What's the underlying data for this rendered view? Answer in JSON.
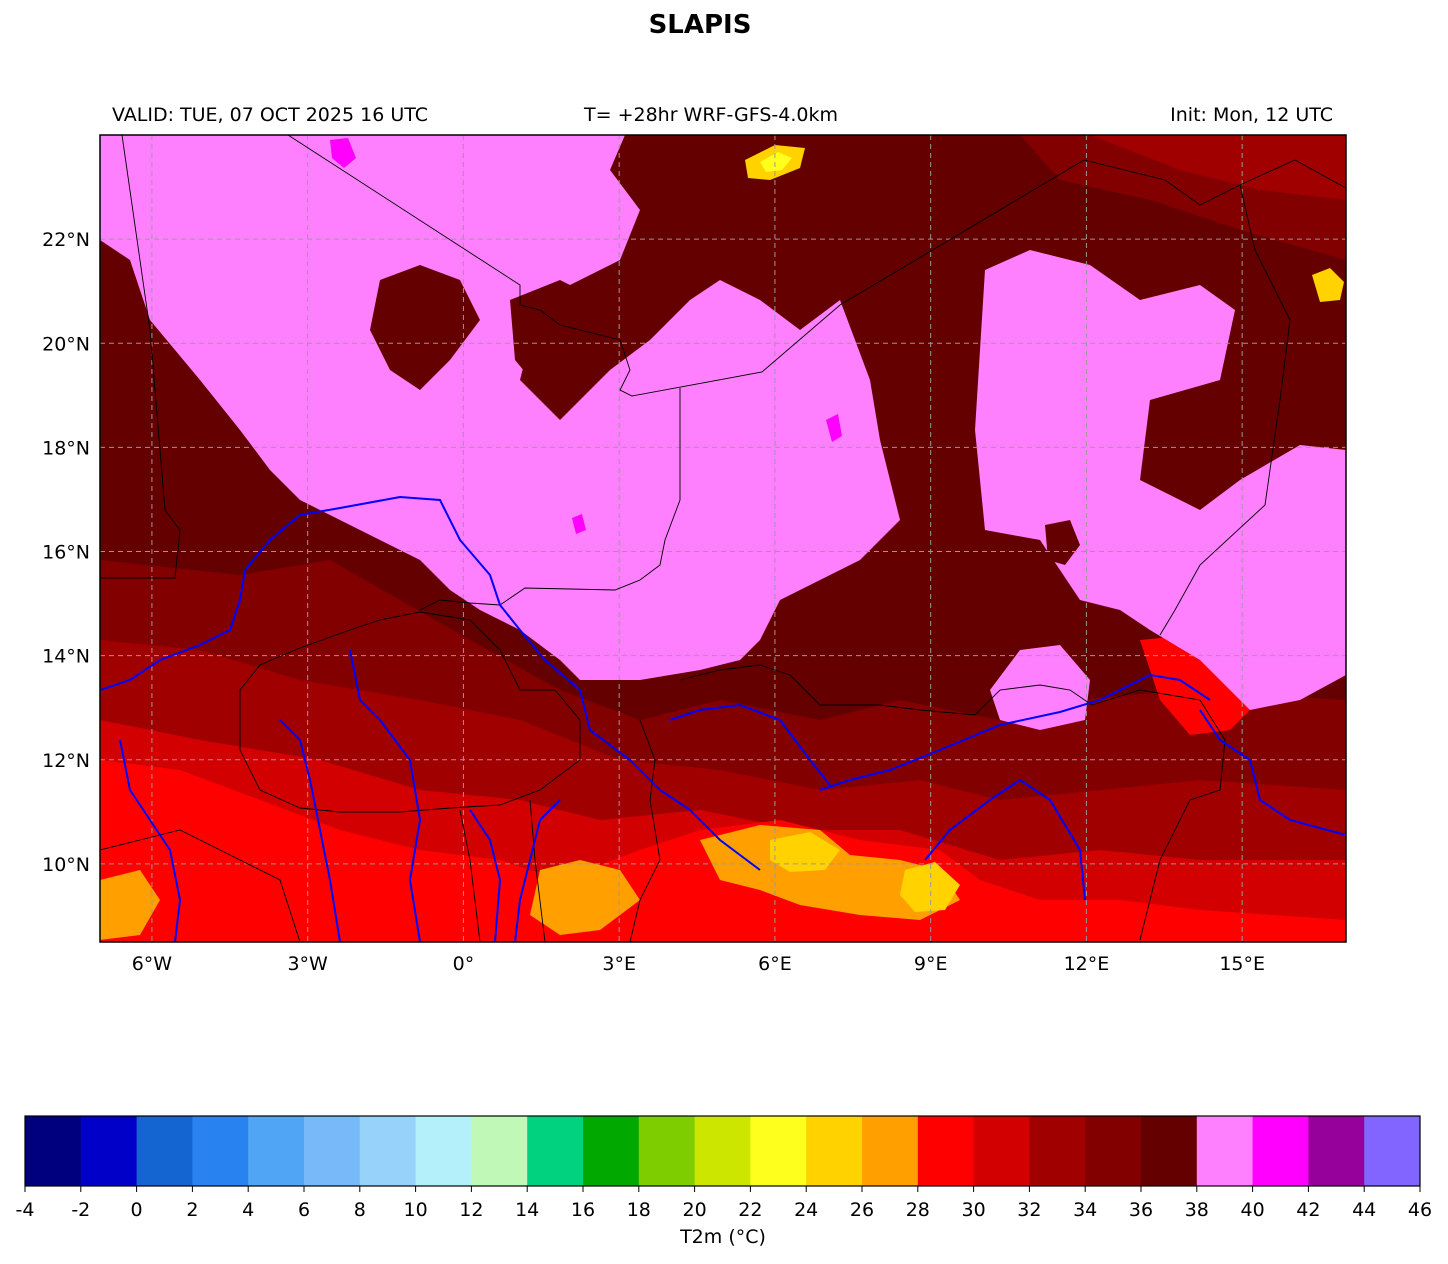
{
  "header": {
    "title": "SLAPIS",
    "valid": "VALID: TUE, 07 OCT 2025 16 UTC",
    "forecast": "T= +28hr WRF-GFS-4.0km",
    "init": "Init: Mon, 12 UTC"
  },
  "map": {
    "lon_range": [
      -7,
      17
    ],
    "lat_range": [
      8.5,
      24
    ],
    "x_ticks": [
      {
        "lon": -6,
        "label": "6°W"
      },
      {
        "lon": -3,
        "label": "3°W"
      },
      {
        "lon": 0,
        "label": "0°"
      },
      {
        "lon": 3,
        "label": "3°E"
      },
      {
        "lon": 6,
        "label": "6°E"
      },
      {
        "lon": 9,
        "label": "9°E"
      },
      {
        "lon": 12,
        "label": "12°E"
      },
      {
        "lon": 15,
        "label": "15°E"
      }
    ],
    "y_ticks": [
      {
        "lat": 10,
        "label": "10°N"
      },
      {
        "lat": 12,
        "label": "12°N"
      },
      {
        "lat": 14,
        "label": "14°N"
      },
      {
        "lat": 16,
        "label": "16°N"
      },
      {
        "lat": 18,
        "label": "18°N"
      },
      {
        "lat": 20,
        "label": "20°N"
      },
      {
        "lat": 22,
        "label": "22°N"
      }
    ],
    "grid": true,
    "colors": {
      "river": "#0000ff",
      "border": "#000000",
      "gridline": "#999999"
    }
  },
  "colorbar": {
    "label": "T2m (°C)",
    "ticks": [
      "-4",
      "-2",
      "0",
      "2",
      "4",
      "6",
      "8",
      "10",
      "12",
      "14",
      "16",
      "18",
      "20",
      "22",
      "24",
      "26",
      "28",
      "30",
      "32",
      "34",
      "36",
      "38",
      "40",
      "42",
      "44",
      "46"
    ],
    "colors": [
      "#00007f",
      "#0000c8",
      "#1464d2",
      "#2882f0",
      "#50a5f5",
      "#78b9fa",
      "#96d2fa",
      "#b4f0fa",
      "#c0f8b8",
      "#00d27f",
      "#00a800",
      "#7dcd00",
      "#cde600",
      "#ffff1e",
      "#ffd200",
      "#ffa000",
      "#ff0000",
      "#d20000",
      "#a00000",
      "#820000",
      "#640000",
      "#ff80ff",
      "#ff00ff",
      "#96009b",
      "#8264ff"
    ]
  }
}
